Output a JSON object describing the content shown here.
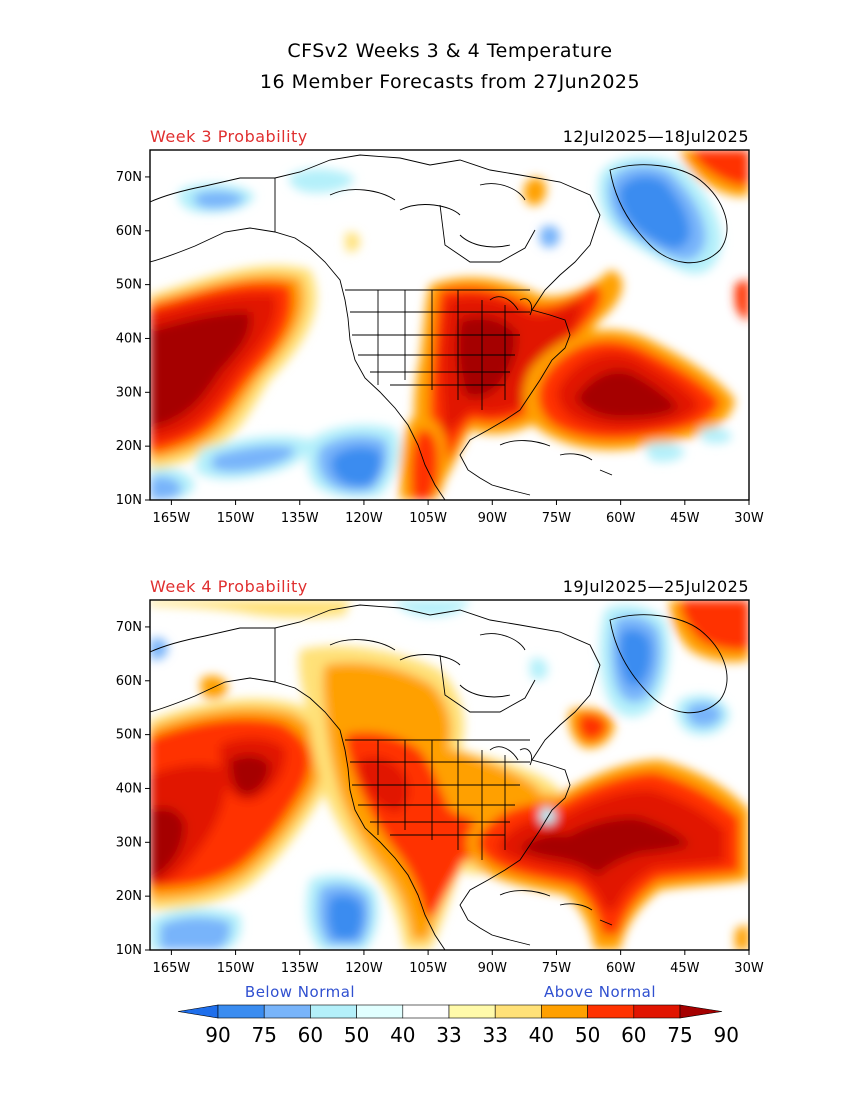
{
  "title_line1": "CFSv2 Weeks 3 & 4 Temperature",
  "title_line2": "16 Member Forecasts from 27Jun2025",
  "panels": [
    {
      "label": "Week 3 Probability",
      "dates": "12Jul2025—18Jul2025"
    },
    {
      "label": "Week 4 Probability",
      "dates": "19Jul2025—25Jul2025"
    }
  ],
  "lat_labels": [
    "10N",
    "20N",
    "30N",
    "40N",
    "50N",
    "60N",
    "70N"
  ],
  "lon_labels": [
    "165W",
    "150W",
    "135W",
    "120W",
    "105W",
    "90W",
    "75W",
    "60W",
    "45W",
    "30W"
  ],
  "legend": {
    "below_label": "Below Normal",
    "above_label": "Above Normal",
    "values": [
      "90",
      "75",
      "60",
      "50",
      "40",
      "33",
      "33",
      "40",
      "50",
      "60",
      "75",
      "90"
    ],
    "colors": [
      "#1E6EEB",
      "#3A8CF0",
      "#78B4FA",
      "#B4F0FA",
      "#E1FFFF",
      "#FFFFFF",
      "#FFFAAA",
      "#FFE178",
      "#FFA000",
      "#FF3200",
      "#E11400",
      "#A50000"
    ],
    "label_color_below": "#3050D0",
    "label_color_above": "#3050D0"
  },
  "colors": {
    "panel_label": "#E03030",
    "map_line": "#000000"
  }
}
